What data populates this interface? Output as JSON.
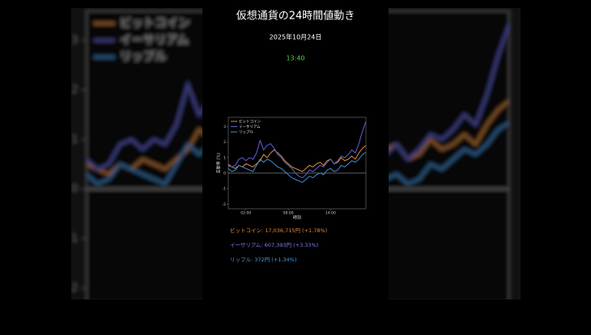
{
  "header": {
    "title": "仮想通貨の24時間値動き",
    "date": "2025年10月24日",
    "time": "13:40",
    "time_color": "#3ddc3d"
  },
  "chart_data": {
    "type": "line",
    "xlabel": "時刻",
    "ylabel": "変動率 (%)",
    "x": [
      0,
      1,
      2,
      3,
      4,
      5,
      6,
      7,
      8,
      9,
      10,
      11,
      12,
      13,
      14,
      15,
      16,
      17,
      18,
      19,
      20,
      21,
      22,
      23,
      24,
      25,
      26,
      27,
      28,
      29,
      30,
      31,
      32,
      33,
      34,
      35,
      36,
      37,
      38,
      39
    ],
    "xlim": [
      0,
      39
    ],
    "xticks": [
      {
        "value": 5,
        "label": "02:00"
      },
      {
        "value": 17,
        "label": "08:00"
      },
      {
        "value": 29,
        "label": "14:00"
      }
    ],
    "ylim": [
      -2.3,
      3.6
    ],
    "yticks": [
      -2,
      -1,
      0,
      1,
      2,
      3
    ],
    "zero_line": true,
    "legend": "upper left",
    "series": [
      {
        "name": "ビットコイン",
        "color": "#e08a3c",
        "values": [
          0.5,
          0.4,
          0.3,
          0.5,
          0.4,
          0.6,
          0.5,
          0.4,
          0.6,
          0.8,
          1.2,
          1.0,
          1.3,
          1.5,
          1.3,
          1.1,
          0.8,
          0.6,
          0.4,
          0.3,
          0.2,
          0.1,
          0.3,
          0.5,
          0.4,
          0.6,
          0.7,
          0.5,
          0.8,
          0.9,
          0.6,
          0.7,
          1.0,
          0.8,
          0.9,
          1.1,
          0.9,
          1.3,
          1.6,
          1.78
        ]
      },
      {
        "name": "イーサリアム",
        "color": "#5f62d6",
        "values": [
          0.6,
          0.4,
          0.5,
          0.9,
          1.0,
          0.8,
          1.0,
          0.9,
          1.3,
          2.1,
          1.5,
          1.8,
          1.9,
          1.6,
          1.2,
          1.0,
          0.7,
          0.5,
          0.3,
          0.0,
          -0.2,
          -0.3,
          -0.1,
          0.2,
          0.1,
          0.3,
          0.5,
          0.4,
          0.7,
          0.9,
          0.6,
          0.8,
          1.1,
          1.0,
          1.2,
          1.5,
          1.3,
          1.9,
          2.7,
          3.33
        ]
      },
      {
        "name": "リップル",
        "color": "#3f8fd8",
        "values": [
          0.3,
          0.1,
          0.2,
          0.5,
          0.4,
          0.3,
          0.2,
          0.1,
          0.5,
          0.9,
          0.7,
          0.9,
          0.8,
          0.6,
          0.4,
          0.3,
          0.1,
          -0.1,
          -0.3,
          -0.4,
          -0.5,
          -0.6,
          -0.4,
          -0.2,
          -0.3,
          -0.1,
          0.0,
          -0.1,
          0.2,
          0.3,
          0.1,
          0.2,
          0.5,
          0.4,
          0.6,
          0.8,
          0.7,
          0.9,
          1.2,
          1.34
        ]
      }
    ]
  },
  "summary": [
    {
      "text": "ビットコイン: 17,036,715円 (+1.78%)",
      "color": "#e08a3c"
    },
    {
      "text": "イーサリアム: 607,393円 (+3.33%)",
      "color": "#7a7ee6"
    },
    {
      "text": "リップル: 372円 (+1.34%)",
      "color": "#4a9be0"
    }
  ]
}
